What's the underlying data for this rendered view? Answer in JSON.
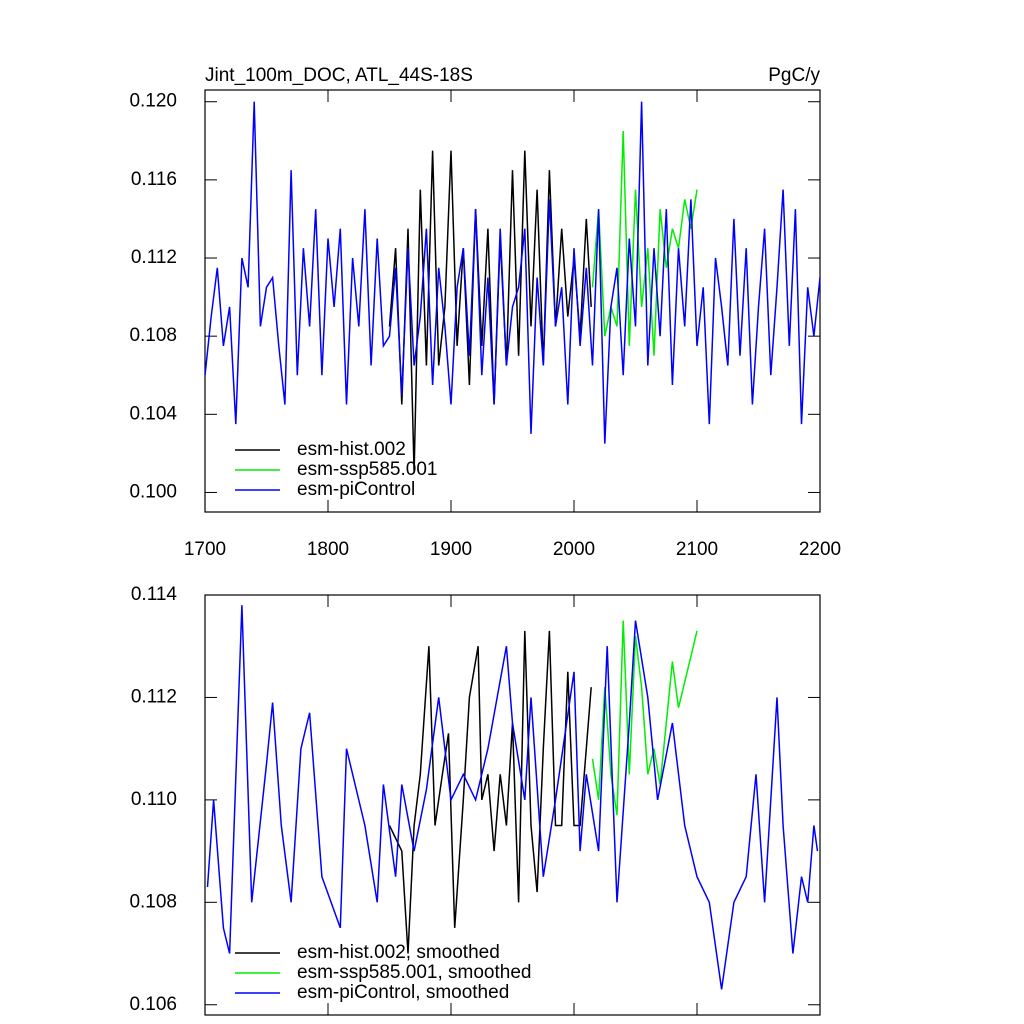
{
  "chart_data": [
    {
      "type": "line",
      "title": "Jint_100m_DOC, ATL_44S-18S",
      "units": "PgC/y",
      "xlim": [
        1700,
        2200
      ],
      "xticks": [
        1700,
        1800,
        1900,
        2000,
        2100,
        2200
      ],
      "xtick_labels": true,
      "ylim": [
        0.099,
        0.1206
      ],
      "yticks": [
        {
          "value": 0.1,
          "label": "0.100"
        },
        {
          "value": 0.104,
          "label": "0.104"
        },
        {
          "value": 0.108,
          "label": "0.108"
        },
        {
          "value": 0.112,
          "label": "0.112"
        },
        {
          "value": 0.116,
          "label": "0.116"
        },
        {
          "value": 0.12,
          "label": "0.120"
        }
      ],
      "legend": "lower left",
      "series": [
        {
          "name": "esm-hist.002",
          "color": "#000000",
          "x": [
            1850,
            1855,
            1860,
            1865,
            1870,
            1875,
            1880,
            1885,
            1890,
            1895,
            1900,
            1905,
            1910,
            1915,
            1920,
            1925,
            1930,
            1935,
            1940,
            1945,
            1950,
            1955,
            1960,
            1965,
            1970,
            1975,
            1980,
            1985,
            1990,
            1995,
            2000,
            2005,
            2010,
            2014
          ],
          "values": [
            0.1085,
            0.1125,
            0.1045,
            0.1135,
            0.101,
            0.1155,
            0.1065,
            0.1175,
            0.1065,
            0.1095,
            0.1175,
            0.1075,
            0.1125,
            0.1055,
            0.1145,
            0.1075,
            0.1135,
            0.1045,
            0.113,
            0.1065,
            0.1165,
            0.107,
            0.1175,
            0.1085,
            0.1155,
            0.1065,
            0.1165,
            0.1085,
            0.1135,
            0.109,
            0.112,
            0.108,
            0.114,
            0.1095
          ]
        },
        {
          "name": "esm-ssp585.001",
          "color": "#00ee00",
          "x": [
            2015,
            2020,
            2025,
            2030,
            2035,
            2040,
            2045,
            2050,
            2055,
            2060,
            2065,
            2070,
            2075,
            2080,
            2085,
            2090,
            2095,
            2100
          ],
          "values": [
            0.1105,
            0.1145,
            0.108,
            0.1095,
            0.1085,
            0.1185,
            0.1075,
            0.1155,
            0.1095,
            0.1125,
            0.107,
            0.1145,
            0.1115,
            0.1135,
            0.1125,
            0.115,
            0.1135,
            0.1155
          ]
        },
        {
          "name": "esm-piControl",
          "color": "#0000ff",
          "x": [
            1700,
            1705,
            1710,
            1715,
            1720,
            1725,
            1730,
            1735,
            1740,
            1745,
            1750,
            1755,
            1760,
            1765,
            1770,
            1775,
            1780,
            1785,
            1790,
            1795,
            1800,
            1805,
            1810,
            1815,
            1820,
            1825,
            1830,
            1835,
            1840,
            1845,
            1850,
            1855,
            1860,
            1865,
            1870,
            1875,
            1880,
            1885,
            1890,
            1895,
            1900,
            1905,
            1910,
            1915,
            1920,
            1925,
            1930,
            1935,
            1940,
            1945,
            1950,
            1955,
            1960,
            1965,
            1970,
            1975,
            1980,
            1985,
            1990,
            1995,
            2000,
            2005,
            2010,
            2015,
            2020,
            2025,
            2030,
            2035,
            2040,
            2045,
            2050,
            2055,
            2060,
            2065,
            2070,
            2075,
            2080,
            2085,
            2090,
            2095,
            2100,
            2105,
            2110,
            2115,
            2120,
            2125,
            2130,
            2135,
            2140,
            2145,
            2150,
            2155,
            2160,
            2165,
            2170,
            2175,
            2180,
            2185,
            2190,
            2195,
            2200
          ],
          "values": [
            0.106,
            0.109,
            0.1115,
            0.1075,
            0.1095,
            0.1035,
            0.112,
            0.1105,
            0.12,
            0.1085,
            0.1105,
            0.111,
            0.1075,
            0.1045,
            0.1165,
            0.106,
            0.1125,
            0.1085,
            0.1145,
            0.106,
            0.113,
            0.1095,
            0.1135,
            0.1045,
            0.112,
            0.1085,
            0.1145,
            0.1065,
            0.113,
            0.1075,
            0.108,
            0.1115,
            0.105,
            0.1125,
            0.1065,
            0.109,
            0.1135,
            0.1055,
            0.1115,
            0.1085,
            0.1045,
            0.1105,
            0.1125,
            0.107,
            0.1145,
            0.106,
            0.111,
            0.1045,
            0.1135,
            0.1065,
            0.1095,
            0.1105,
            0.1135,
            0.103,
            0.111,
            0.1065,
            0.115,
            0.1085,
            0.1105,
            0.1045,
            0.1125,
            0.1075,
            0.1115,
            0.1065,
            0.1145,
            0.1025,
            0.1095,
            0.1115,
            0.106,
            0.113,
            0.1085,
            0.12,
            0.1065,
            0.1125,
            0.108,
            0.1145,
            0.1055,
            0.1125,
            0.1085,
            0.115,
            0.1075,
            0.1105,
            0.1035,
            0.112,
            0.1095,
            0.1065,
            0.114,
            0.107,
            0.1125,
            0.1045,
            0.1095,
            0.1135,
            0.106,
            0.1105,
            0.1155,
            0.1075,
            0.1145,
            0.1035,
            0.1105,
            0.108,
            0.111
          ]
        }
      ]
    },
    {
      "type": "line",
      "xlim": [
        1700,
        2200
      ],
      "xticks": [
        1700,
        1800,
        1900,
        2000,
        2100,
        2200
      ],
      "xtick_labels": false,
      "ylim": [
        0.1058,
        0.114
      ],
      "yticks": [
        {
          "value": 0.106,
          "label": "0.106"
        },
        {
          "value": 0.108,
          "label": "0.108"
        },
        {
          "value": 0.11,
          "label": "0.110"
        },
        {
          "value": 0.112,
          "label": "0.112"
        },
        {
          "value": 0.114,
          "label": "0.114"
        }
      ],
      "legend": "lower left",
      "series": [
        {
          "name": "esm-hist.002, smoothed",
          "color": "#000000",
          "x": [
            1850,
            1860,
            1865,
            1870,
            1875,
            1882,
            1887,
            1893,
            1898,
            1903,
            1910,
            1915,
            1922,
            1925,
            1930,
            1935,
            1940,
            1945,
            1950,
            1955,
            1960,
            1965,
            1970,
            1975,
            1980,
            1985,
            1990,
            1995,
            2000,
            2005,
            2010,
            2014
          ],
          "values": [
            0.1095,
            0.109,
            0.107,
            0.1095,
            0.1105,
            0.113,
            0.1095,
            0.1105,
            0.1113,
            0.1075,
            0.11,
            0.112,
            0.113,
            0.11,
            0.1105,
            0.109,
            0.1105,
            0.1095,
            0.1115,
            0.108,
            0.1133,
            0.1095,
            0.1082,
            0.111,
            0.1133,
            0.1095,
            0.1095,
            0.1125,
            0.1095,
            0.1095,
            0.111,
            0.1122
          ]
        },
        {
          "name": "esm-ssp585.001, smoothed",
          "color": "#00ee00",
          "x": [
            2015,
            2020,
            2025,
            2030,
            2035,
            2040,
            2045,
            2050,
            2055,
            2060,
            2065,
            2070,
            2075,
            2080,
            2085,
            2090,
            2095,
            2100
          ],
          "values": [
            0.1108,
            0.11,
            0.1122,
            0.1105,
            0.1097,
            0.1135,
            0.1105,
            0.1132,
            0.1122,
            0.1105,
            0.111,
            0.1103,
            0.1115,
            0.1127,
            0.1118,
            0.1123,
            0.1128,
            0.1133
          ]
        },
        {
          "name": "esm-piControl, smoothed",
          "color": "#0000ff",
          "x": [
            1702,
            1707,
            1715,
            1720,
            1730,
            1738,
            1750,
            1755,
            1762,
            1770,
            1778,
            1785,
            1795,
            1810,
            1815,
            1830,
            1840,
            1845,
            1855,
            1860,
            1870,
            1880,
            1890,
            1900,
            1910,
            1920,
            1930,
            1945,
            1950,
            1960,
            1965,
            1975,
            1985,
            2000,
            2005,
            2010,
            2020,
            2027,
            2035,
            2045,
            2050,
            2060,
            2068,
            2080,
            2090,
            2100,
            2110,
            2120,
            2130,
            2140,
            2148,
            2155,
            2165,
            2170,
            2178,
            2185,
            2190,
            2195,
            2198
          ],
          "values": [
            0.1083,
            0.11,
            0.1075,
            0.107,
            0.1138,
            0.108,
            0.1107,
            0.1119,
            0.1095,
            0.108,
            0.111,
            0.1117,
            0.1085,
            0.1075,
            0.111,
            0.1095,
            0.108,
            0.1103,
            0.1085,
            0.1103,
            0.109,
            0.1102,
            0.112,
            0.11,
            0.1105,
            0.11,
            0.111,
            0.113,
            0.1115,
            0.11,
            0.112,
            0.1085,
            0.11,
            0.1125,
            0.109,
            0.1105,
            0.109,
            0.113,
            0.108,
            0.1115,
            0.1135,
            0.112,
            0.11,
            0.1115,
            0.1095,
            0.1085,
            0.108,
            0.1063,
            0.108,
            0.1085,
            0.1105,
            0.108,
            0.112,
            0.1095,
            0.107,
            0.1085,
            0.108,
            0.1095,
            0.109
          ]
        }
      ]
    }
  ]
}
